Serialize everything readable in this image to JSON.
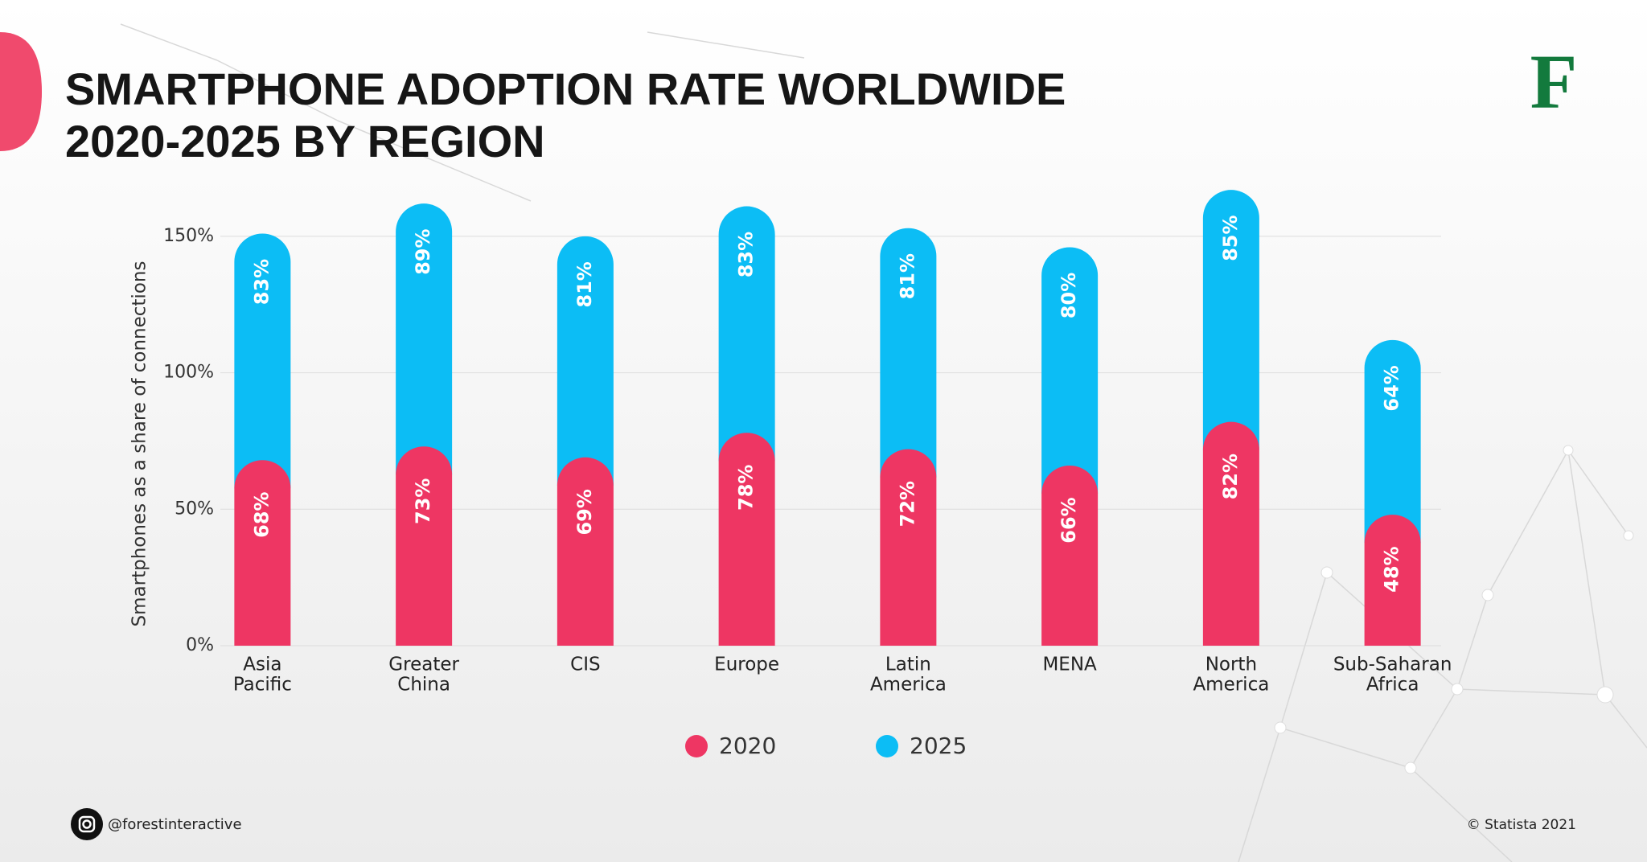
{
  "title": [
    "SMARTPHONE ADOPTION RATE WORLDWIDE",
    "2020-2025 BY REGION"
  ],
  "logo": "F",
  "social": "@forestinteractive",
  "source": "© Statista 2021",
  "chart_data": {
    "type": "stacked-bar",
    "y_label": "Smartphones as a share of connections",
    "categories": [
      [
        "Asia",
        "Pacific"
      ],
      [
        "Greater",
        "China"
      ],
      [
        "CIS"
      ],
      [
        "Europe"
      ],
      [
        "Latin",
        "America"
      ],
      [
        "MENA"
      ],
      [
        "North",
        "America"
      ],
      [
        "Sub-Saharan",
        "Africa"
      ]
    ],
    "series": [
      {
        "name": "2020",
        "color": "#ee3663",
        "values": [
          68,
          73,
          69,
          78,
          72,
          66,
          82,
          48
        ],
        "value_labels": [
          "68%",
          "73%",
          "69%",
          "78%",
          "72%",
          "66%",
          "82%",
          "48%"
        ]
      },
      {
        "name": "2025",
        "color": "#0cbdf5",
        "values": [
          83,
          89,
          81,
          83,
          81,
          80,
          85,
          64
        ],
        "value_labels": [
          "83%",
          "89%",
          "81%",
          "83%",
          "81%",
          "80%",
          "85%",
          "64%"
        ]
      }
    ],
    "ylim": [
      0,
      170
    ],
    "yticks": [
      {
        "value": 0,
        "label": "0%"
      },
      {
        "value": 50,
        "label": "50%"
      },
      {
        "value": 100,
        "label": "100%"
      },
      {
        "value": 150,
        "label": "150%"
      }
    ],
    "grid": true
  }
}
